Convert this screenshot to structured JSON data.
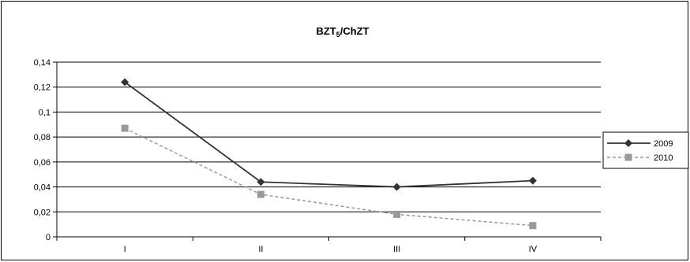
{
  "chart_data": {
    "type": "line",
    "title_main": "BZT",
    "title_sub": "5",
    "title_rest": "/ChZT",
    "categories": [
      "I",
      "II",
      "III",
      "IV"
    ],
    "ylim": [
      0,
      0.14
    ],
    "yticks": [
      0,
      0.02,
      0.04,
      0.06,
      0.08,
      0.1,
      0.12,
      0.14
    ],
    "ytick_labels": [
      "0",
      "0,02",
      "0,04",
      "0,06",
      "0,08",
      "0,1",
      "0,12",
      "0,14"
    ],
    "grid": true,
    "legend_position": "right",
    "series": [
      {
        "name": "2009",
        "values": [
          0.124,
          0.044,
          0.04,
          0.045
        ],
        "color": "#333333",
        "marker": "diamond",
        "dash": "solid"
      },
      {
        "name": "2010",
        "values": [
          0.087,
          0.034,
          0.018,
          0.009
        ],
        "color": "#999999",
        "marker": "square",
        "dash": "dashed"
      }
    ]
  }
}
